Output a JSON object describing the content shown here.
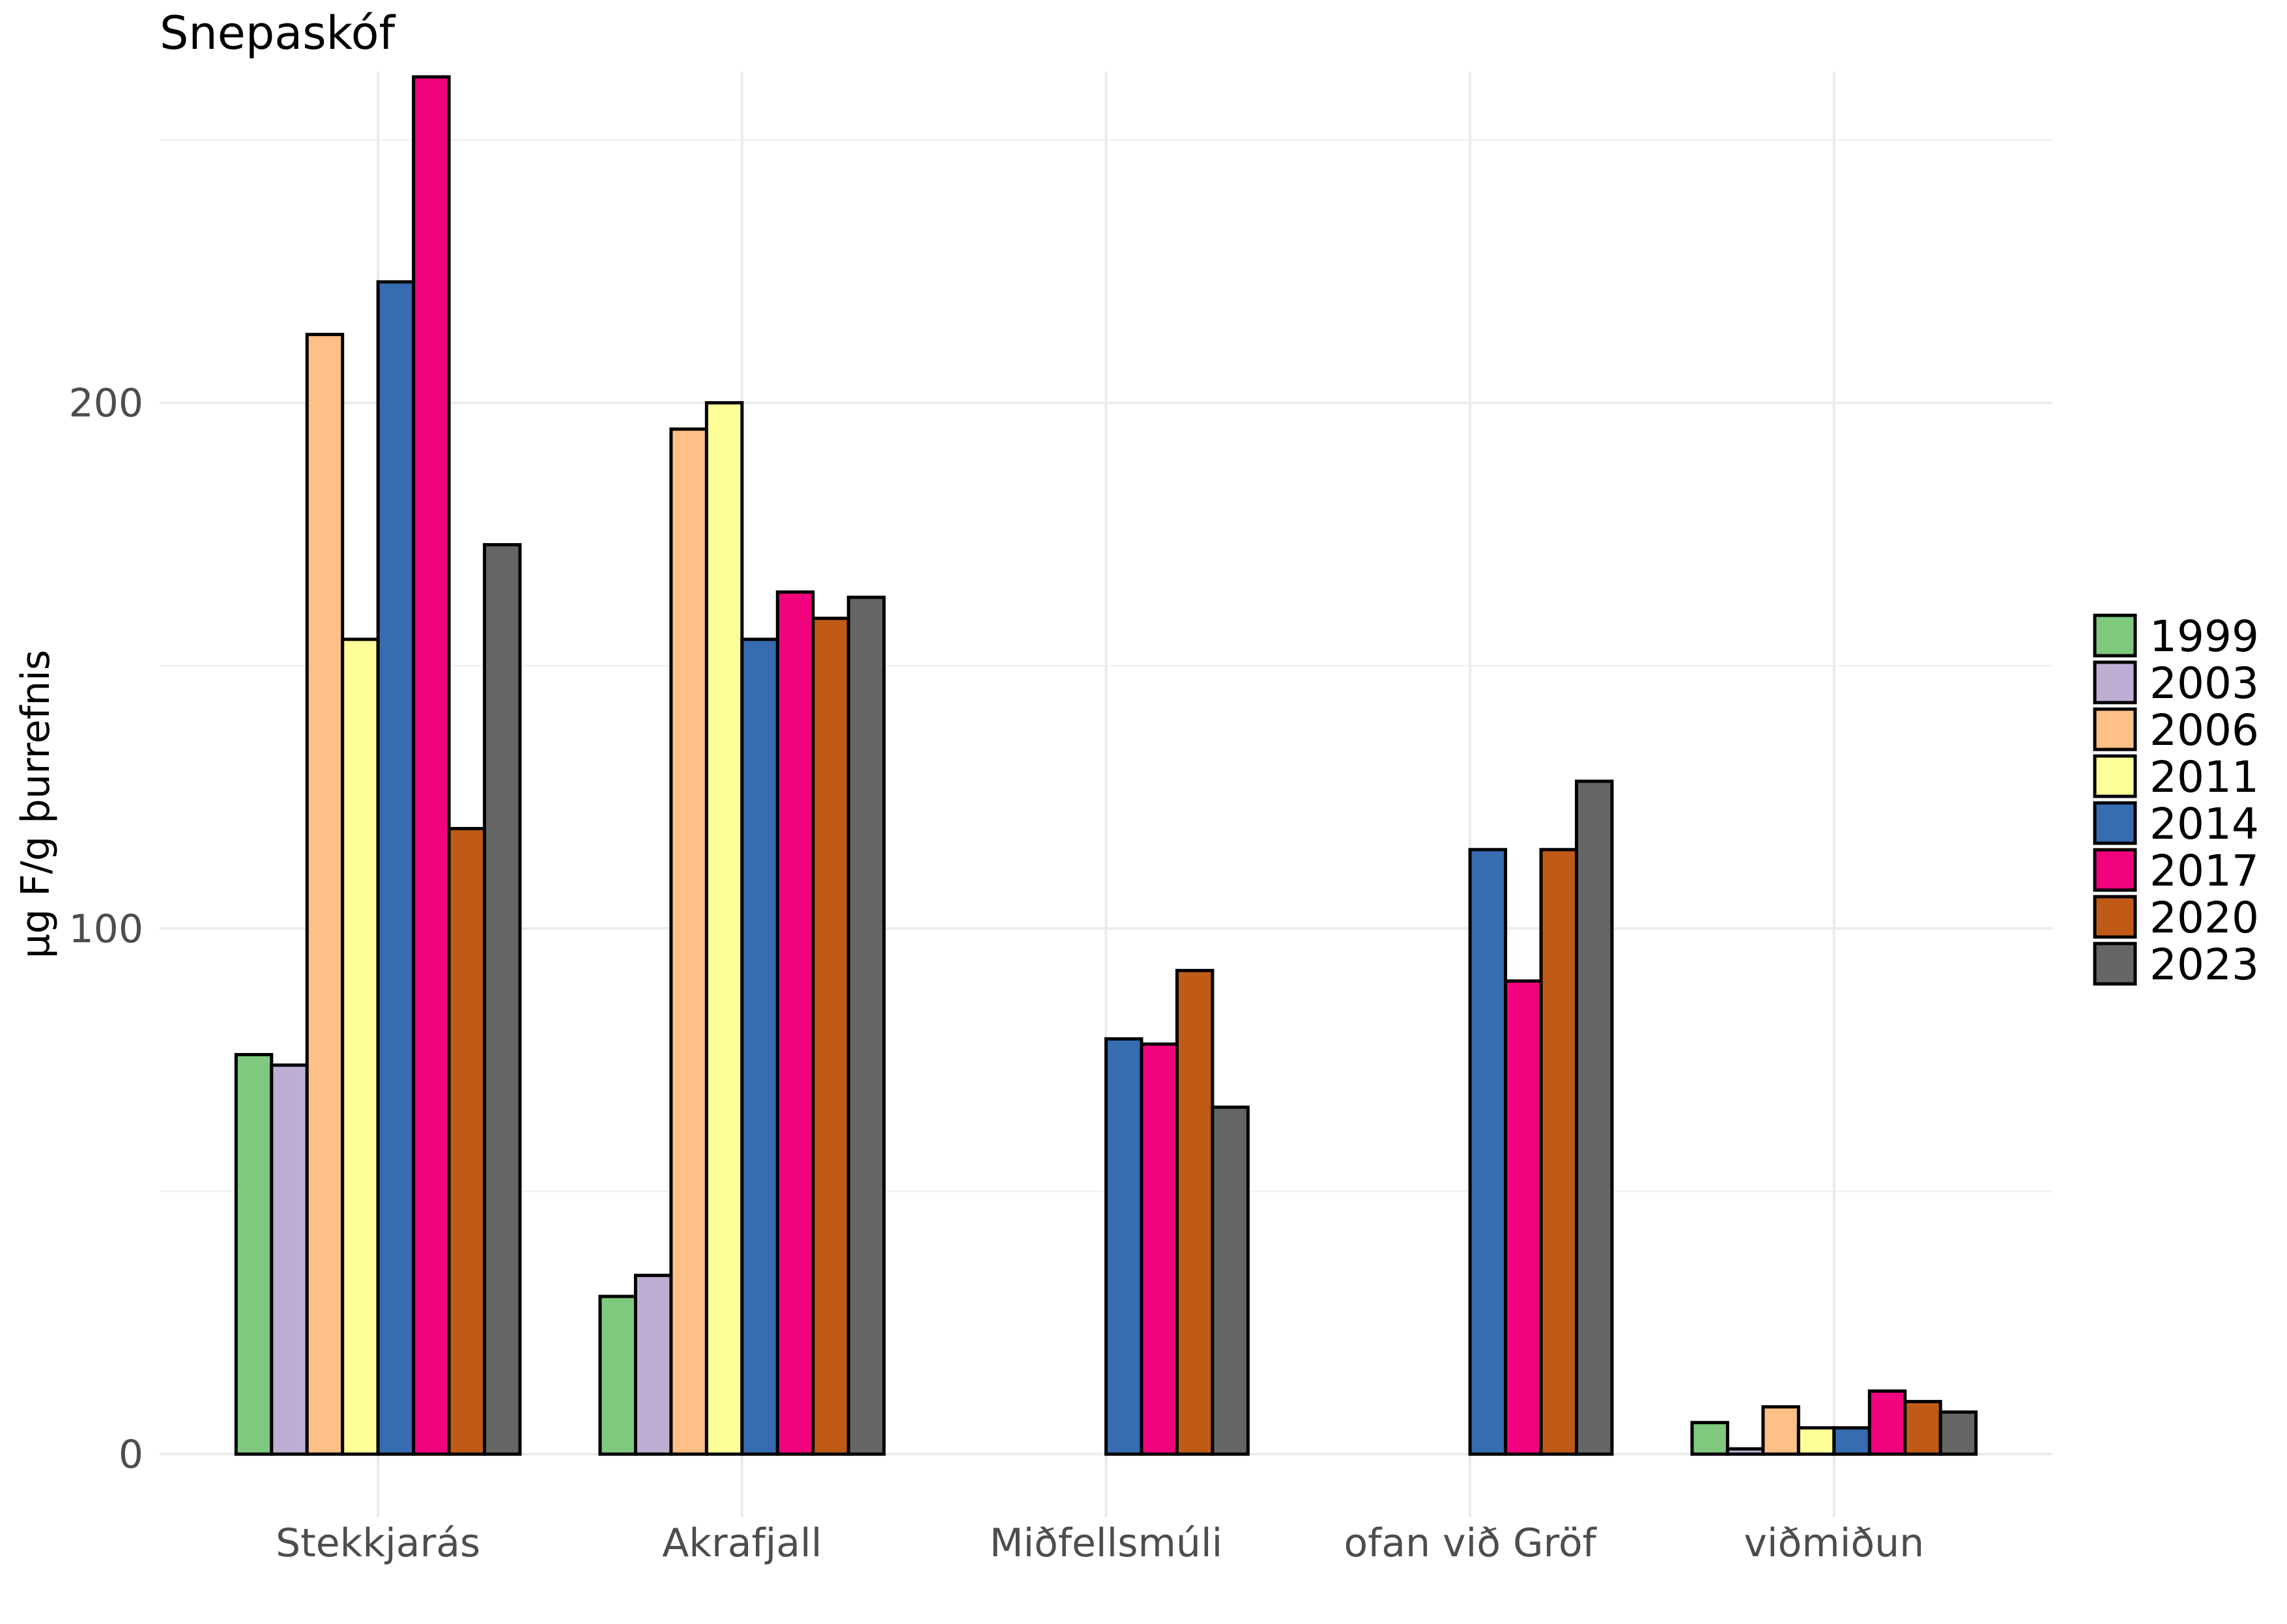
{
  "chart_data": {
    "type": "bar",
    "title": "Snepaskóf",
    "ylabel": "µg F/g þurrefnis",
    "xlabel": "",
    "ylim": [
      -12,
      263
    ],
    "yticks": [
      0,
      100,
      200
    ],
    "grid": true,
    "legend_position": "right",
    "categories": [
      "Stekkjarás",
      "Akrafjall",
      "Miðfellsmúli",
      "ofan við Gröf",
      "viðmiðun"
    ],
    "series": [
      {
        "name": "1999",
        "color": "#7fc97f",
        "values": [
          76,
          30,
          null,
          null,
          6
        ]
      },
      {
        "name": "2003",
        "color": "#beaed4",
        "values": [
          74,
          34,
          null,
          null,
          1
        ]
      },
      {
        "name": "2006",
        "color": "#fdc086",
        "values": [
          213,
          195,
          null,
          null,
          9
        ]
      },
      {
        "name": "2011",
        "color": "#ffff99",
        "values": [
          155,
          200,
          null,
          null,
          5
        ]
      },
      {
        "name": "2014",
        "color": "#386cb0",
        "values": [
          223,
          155,
          79,
          115,
          5
        ]
      },
      {
        "name": "2017",
        "color": "#f0027f",
        "values": [
          262,
          164,
          78,
          90,
          12
        ]
      },
      {
        "name": "2020",
        "color": "#bf5b17",
        "values": [
          119,
          159,
          92,
          115,
          10
        ]
      },
      {
        "name": "2023",
        "color": "#666666",
        "values": [
          173,
          163,
          66,
          128,
          8
        ]
      }
    ]
  }
}
